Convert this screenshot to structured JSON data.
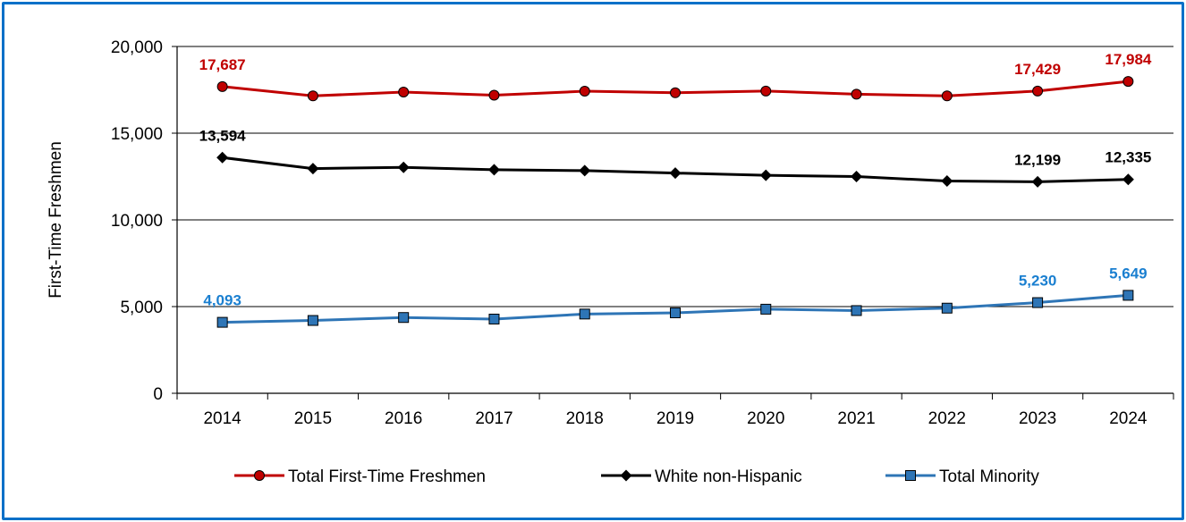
{
  "chart_data": {
    "type": "line",
    "title": "",
    "xlabel": "",
    "ylabel": "First-Time Freshmen",
    "categories": [
      "2014",
      "2015",
      "2016",
      "2017",
      "2018",
      "2019",
      "2020",
      "2021",
      "2022",
      "2023",
      "2024"
    ],
    "ylim": [
      0,
      20000
    ],
    "yticks": [
      0,
      5000,
      10000,
      15000,
      20000
    ],
    "ytick_labels": [
      "0",
      "5,000",
      "10,000",
      "15,000",
      "20,000"
    ],
    "grid": true,
    "legend": "bottom",
    "series": [
      {
        "name": "Total First-Time Freshmen",
        "color": "#c00000",
        "marker": "circle",
        "values": [
          17687,
          17150,
          17370,
          17190,
          17420,
          17330,
          17430,
          17250,
          17150,
          17429,
          17984
        ],
        "data_labels": {
          "0": "17,687",
          "9": "17,429",
          "10": "17,984"
        }
      },
      {
        "name": "White non-Hispanic",
        "color": "#000000",
        "marker": "diamond",
        "values": [
          13594,
          12960,
          13030,
          12890,
          12840,
          12700,
          12570,
          12500,
          12240,
          12199,
          12335
        ],
        "data_labels": {
          "0": "13,594",
          "9": "12,199",
          "10": "12,335"
        }
      },
      {
        "name": "Total Minority",
        "color": "#2e75b6",
        "marker": "square",
        "values": [
          4093,
          4200,
          4370,
          4280,
          4570,
          4640,
          4850,
          4770,
          4910,
          5230,
          5649
        ],
        "data_labels": {
          "0": "4,093",
          "9": "5,230",
          "10": "5,649"
        }
      }
    ]
  }
}
